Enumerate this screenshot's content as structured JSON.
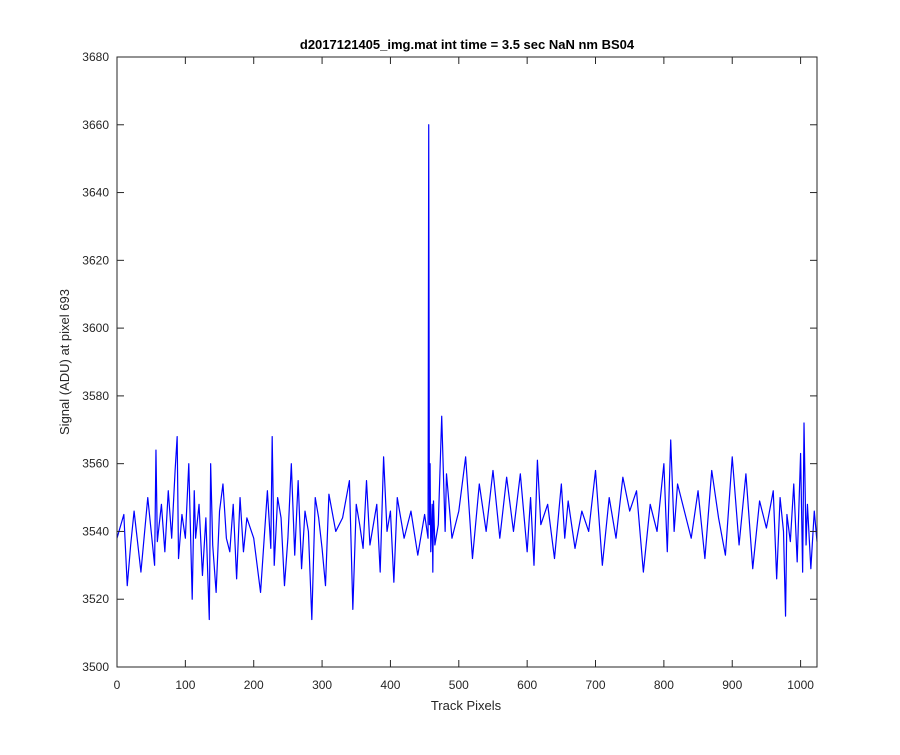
{
  "chart_data": {
    "type": "line",
    "title": "d2017121405_img.mat int time = 3.5 sec  NaN nm BS04",
    "xlabel": "Track Pixels",
    "ylabel": "Signal (ADU) at pixel 693",
    "xlim": [
      0,
      1024
    ],
    "ylim": [
      3500,
      3680
    ],
    "xticks": [
      0,
      100,
      200,
      300,
      400,
      500,
      600,
      700,
      800,
      900,
      1000
    ],
    "yticks": [
      3500,
      3520,
      3540,
      3560,
      3580,
      3600,
      3620,
      3640,
      3660,
      3680
    ],
    "grid": false,
    "line_color": "#0000ff",
    "series": [
      {
        "x": [
          0,
          10,
          15,
          20,
          25,
          35,
          45,
          50,
          55,
          57,
          59,
          65,
          70,
          75,
          80,
          85,
          88,
          90,
          95,
          100,
          105,
          110,
          113,
          115,
          120,
          125,
          130,
          135,
          137,
          140,
          145,
          150,
          155,
          160,
          165,
          170,
          175,
          180,
          185,
          190,
          200,
          210,
          220,
          225,
          227,
          230,
          235,
          240,
          245,
          250,
          255,
          260,
          265,
          270,
          275,
          280,
          285,
          290,
          295,
          300,
          305,
          310,
          320,
          330,
          340,
          345,
          350,
          355,
          360,
          365,
          370,
          380,
          385,
          390,
          395,
          400,
          405,
          410,
          420,
          430,
          440,
          450,
          455,
          456,
          457,
          458,
          459,
          460,
          461,
          462,
          463,
          465,
          470,
          475,
          480,
          482,
          490,
          500,
          510,
          520,
          530,
          540,
          550,
          560,
          570,
          580,
          590,
          600,
          605,
          610,
          615,
          620,
          630,
          640,
          650,
          655,
          660,
          670,
          680,
          690,
          700,
          710,
          720,
          730,
          740,
          750,
          760,
          770,
          780,
          790,
          800,
          805,
          810,
          815,
          820,
          830,
          840,
          850,
          860,
          870,
          880,
          890,
          900,
          910,
          920,
          930,
          940,
          950,
          960,
          965,
          970,
          975,
          978,
          980,
          985,
          990,
          995,
          1000,
          1003,
          1005,
          1008,
          1010,
          1015,
          1020,
          1024
        ],
        "y": [
          3538,
          3545,
          3524,
          3536,
          3546,
          3528,
          3550,
          3540,
          3530,
          3564,
          3537,
          3548,
          3534,
          3552,
          3538,
          3558,
          3568,
          3532,
          3545,
          3538,
          3560,
          3520,
          3552,
          3538,
          3548,
          3527,
          3544,
          3514,
          3560,
          3536,
          3522,
          3546,
          3554,
          3538,
          3534,
          3548,
          3526,
          3550,
          3534,
          3544,
          3538,
          3522,
          3552,
          3535,
          3568,
          3530,
          3550,
          3544,
          3524,
          3538,
          3560,
          3533,
          3555,
          3529,
          3546,
          3540,
          3514,
          3550,
          3544,
          3535,
          3524,
          3551,
          3540,
          3544,
          3555,
          3517,
          3548,
          3542,
          3535,
          3555,
          3536,
          3548,
          3528,
          3562,
          3540,
          3546,
          3525,
          3550,
          3538,
          3546,
          3533,
          3545,
          3538,
          3660,
          3542,
          3560,
          3534,
          3540,
          3548,
          3528,
          3549,
          3536,
          3542,
          3574,
          3540,
          3557,
          3538,
          3546,
          3562,
          3532,
          3554,
          3540,
          3558,
          3538,
          3556,
          3540,
          3557,
          3534,
          3550,
          3530,
          3561,
          3542,
          3548,
          3532,
          3554,
          3538,
          3549,
          3535,
          3546,
          3540,
          3558,
          3530,
          3550,
          3538,
          3556,
          3546,
          3552,
          3528,
          3548,
          3540,
          3560,
          3534,
          3567,
          3540,
          3554,
          3546,
          3538,
          3552,
          3532,
          3558,
          3544,
          3533,
          3562,
          3536,
          3557,
          3529,
          3549,
          3541,
          3552,
          3526,
          3550,
          3540,
          3515,
          3545,
          3537,
          3554,
          3531,
          3563,
          3528,
          3572,
          3536,
          3548,
          3529,
          3546,
          3537
        ]
      }
    ]
  }
}
